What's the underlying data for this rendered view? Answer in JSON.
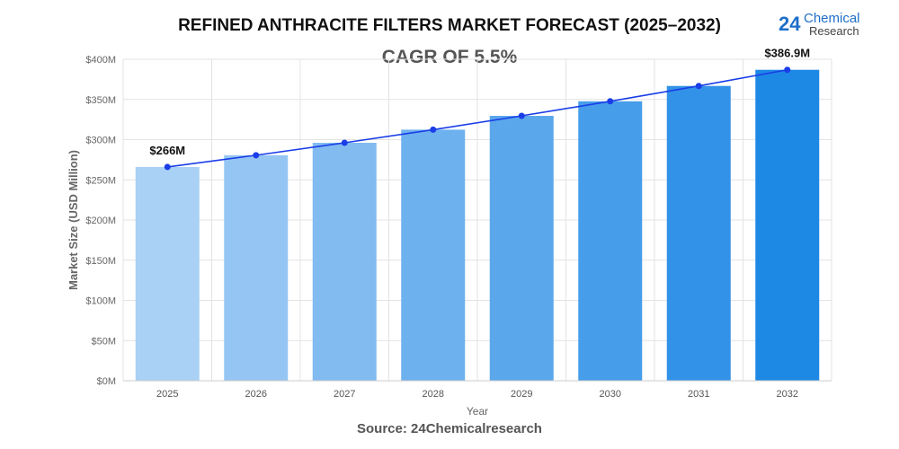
{
  "logo": {
    "number": "24",
    "line1": "Chemical",
    "line2": "Research"
  },
  "source": "Source: 24Chemicalresearch",
  "chart_data": {
    "type": "bar",
    "title": "REFINED ANTHRACITE FILTERS MARKET FORECAST (2025–2032)",
    "subtitle": "CAGR OF 5.5%",
    "xlabel": "Year",
    "ylabel": "Market Size (USD Million)",
    "categories": [
      "2025",
      "2026",
      "2027",
      "2028",
      "2029",
      "2030",
      "2031",
      "2032"
    ],
    "values": [
      266,
      280.6,
      296.1,
      312.4,
      329.6,
      347.7,
      366.8,
      386.9
    ],
    "data_labels": {
      "0": "$266M",
      "7": "$386.9M"
    },
    "ylim": [
      0,
      400
    ],
    "yticks": [
      "$0M",
      "$50M",
      "$100M",
      "$150M",
      "$200M",
      "$250M",
      "$300M",
      "$350M",
      "$400M"
    ],
    "grid": true,
    "overlay": "line with markers",
    "colors": {
      "bar_start": "#a9d0f5",
      "bar_end": "#1e88e5",
      "line": "#1a3de8"
    }
  }
}
